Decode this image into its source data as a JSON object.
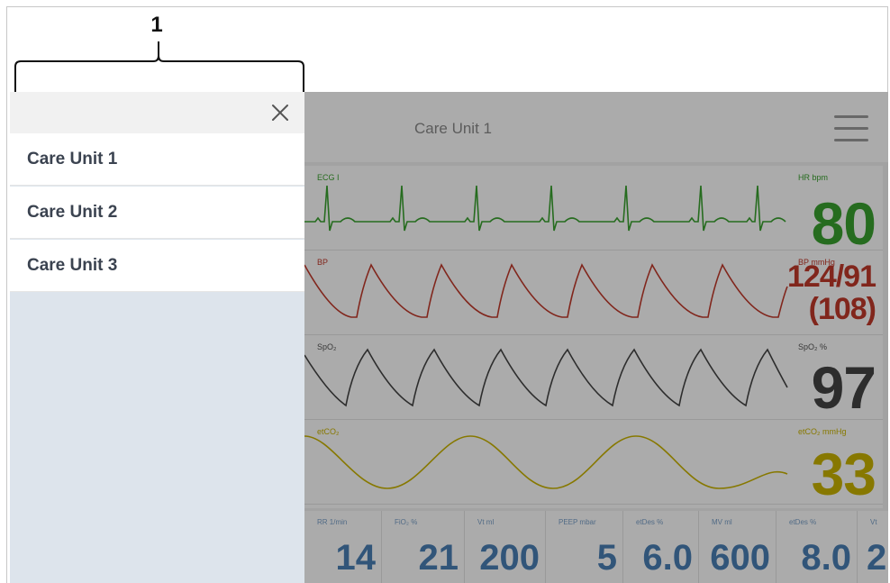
{
  "callout": {
    "label": "1"
  },
  "sidebar": {
    "close_icon": "close-icon",
    "items": [
      {
        "label": "Care Unit 1"
      },
      {
        "label": "Care Unit 2"
      },
      {
        "label": "Care Unit 3"
      }
    ]
  },
  "monitor": {
    "title": "Care Unit 1",
    "menu_icon": "hamburger-menu-icon",
    "waveforms": [
      {
        "label": "ECG I",
        "sublabel": "",
        "param_label": "HR bpm",
        "value": "80",
        "color": "#3aa12f"
      },
      {
        "label": "BP",
        "param_label": "BP mmHg",
        "value": "124/91",
        "value2": "(108)",
        "color": "#c0392b"
      },
      {
        "label": "SpO₂",
        "param_label": "SpO₂ %",
        "value": "97",
        "color": "#444444"
      },
      {
        "label": "etCO₂",
        "param_label": "etCO₂ mmHg",
        "value": "33",
        "color": "#c9b400"
      }
    ],
    "params": [
      {
        "label": "RR 1/min",
        "value": "14"
      },
      {
        "label": "FiO₂ %",
        "value": "21"
      },
      {
        "label": "Vt ml",
        "value": "200"
      },
      {
        "label": "PEEP mbar",
        "value": "5"
      },
      {
        "label": "etDes %",
        "value": "6.0"
      },
      {
        "label": "MV ml",
        "value": "600"
      },
      {
        "label": "etDes %",
        "value": "8.0"
      },
      {
        "label": "Vt",
        "value": "2"
      }
    ]
  },
  "colors": {
    "param_value": "#4a7fb5",
    "overlay_panel": "#dde4ec"
  }
}
